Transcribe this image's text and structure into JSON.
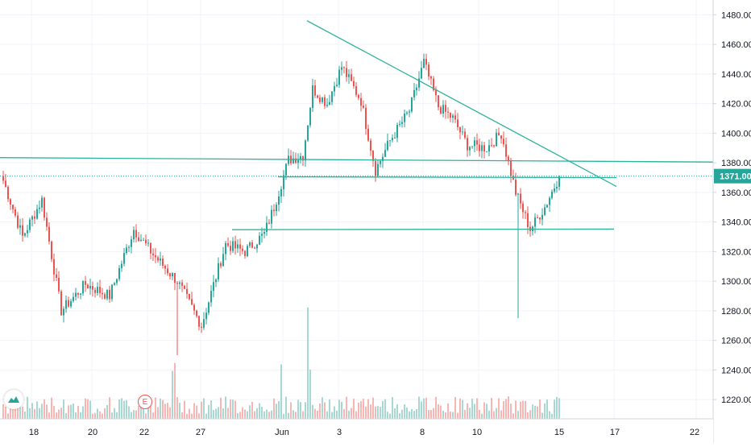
{
  "chart_data": {
    "type": "candlestick",
    "y_ticks": [
      "1480.00",
      "1460.00",
      "1440.00",
      "1420.00",
      "1400.00",
      "1380.00",
      "1360.00",
      "1340.00",
      "1320.00",
      "1300.00",
      "1280.00",
      "1260.00",
      "1240.00",
      "1220.00"
    ],
    "ylim": [
      1207,
      1490
    ],
    "x_ticks": [
      "18",
      "20",
      "22",
      "27",
      "Jun",
      "3",
      "8",
      "10",
      "15",
      "17",
      "22"
    ],
    "last_price_label": "1371.00",
    "last_price": 1371,
    "earnings_badge": "E",
    "logo_icon": "tradingview-logo-icon",
    "colors": {
      "up": "#26a69a",
      "down": "#ef5350",
      "trendline": "#2eb29a",
      "price_label_bg": "#26a69a",
      "volume_up": "#a7d8d2",
      "volume_down": "#f7b5b3"
    },
    "anchors": [
      {
        "bar": 0,
        "price": 1368
      },
      {
        "bar": 8,
        "price": 1330
      },
      {
        "bar": 16,
        "price": 1355
      },
      {
        "bar": 24,
        "price": 1280
      },
      {
        "bar": 34,
        "price": 1298
      },
      {
        "bar": 44,
        "price": 1290
      },
      {
        "bar": 54,
        "price": 1335
      },
      {
        "bar": 62,
        "price": 1318
      },
      {
        "bar": 72,
        "price": 1300
      },
      {
        "bar": 82,
        "price": 1270
      },
      {
        "bar": 92,
        "price": 1325
      },
      {
        "bar": 100,
        "price": 1320
      },
      {
        "bar": 108,
        "price": 1332
      },
      {
        "bar": 112,
        "price": 1350
      },
      {
        "bar": 118,
        "price": 1382
      },
      {
        "bar": 124,
        "price": 1385
      },
      {
        "bar": 128,
        "price": 1430
      },
      {
        "bar": 134,
        "price": 1420
      },
      {
        "bar": 140,
        "price": 1445
      },
      {
        "bar": 148,
        "price": 1422
      },
      {
        "bar": 154,
        "price": 1375
      },
      {
        "bar": 160,
        "price": 1395
      },
      {
        "bar": 168,
        "price": 1415
      },
      {
        "bar": 174,
        "price": 1448
      },
      {
        "bar": 180,
        "price": 1418
      },
      {
        "bar": 186,
        "price": 1410
      },
      {
        "bar": 192,
        "price": 1392
      },
      {
        "bar": 200,
        "price": 1390
      },
      {
        "bar": 206,
        "price": 1400
      },
      {
        "bar": 212,
        "price": 1360
      },
      {
        "bar": 218,
        "price": 1335
      },
      {
        "bar": 224,
        "price": 1350
      },
      {
        "bar": 230,
        "price": 1371
      }
    ],
    "volume_spikes": [
      {
        "bar": 70,
        "scale": 2.4
      },
      {
        "bar": 71,
        "scale": 1.6
      },
      {
        "bar": 126,
        "scale": 3.2
      },
      {
        "bar": 127,
        "scale": 1.8
      },
      {
        "bar": 115,
        "scale": 1.4
      }
    ]
  }
}
